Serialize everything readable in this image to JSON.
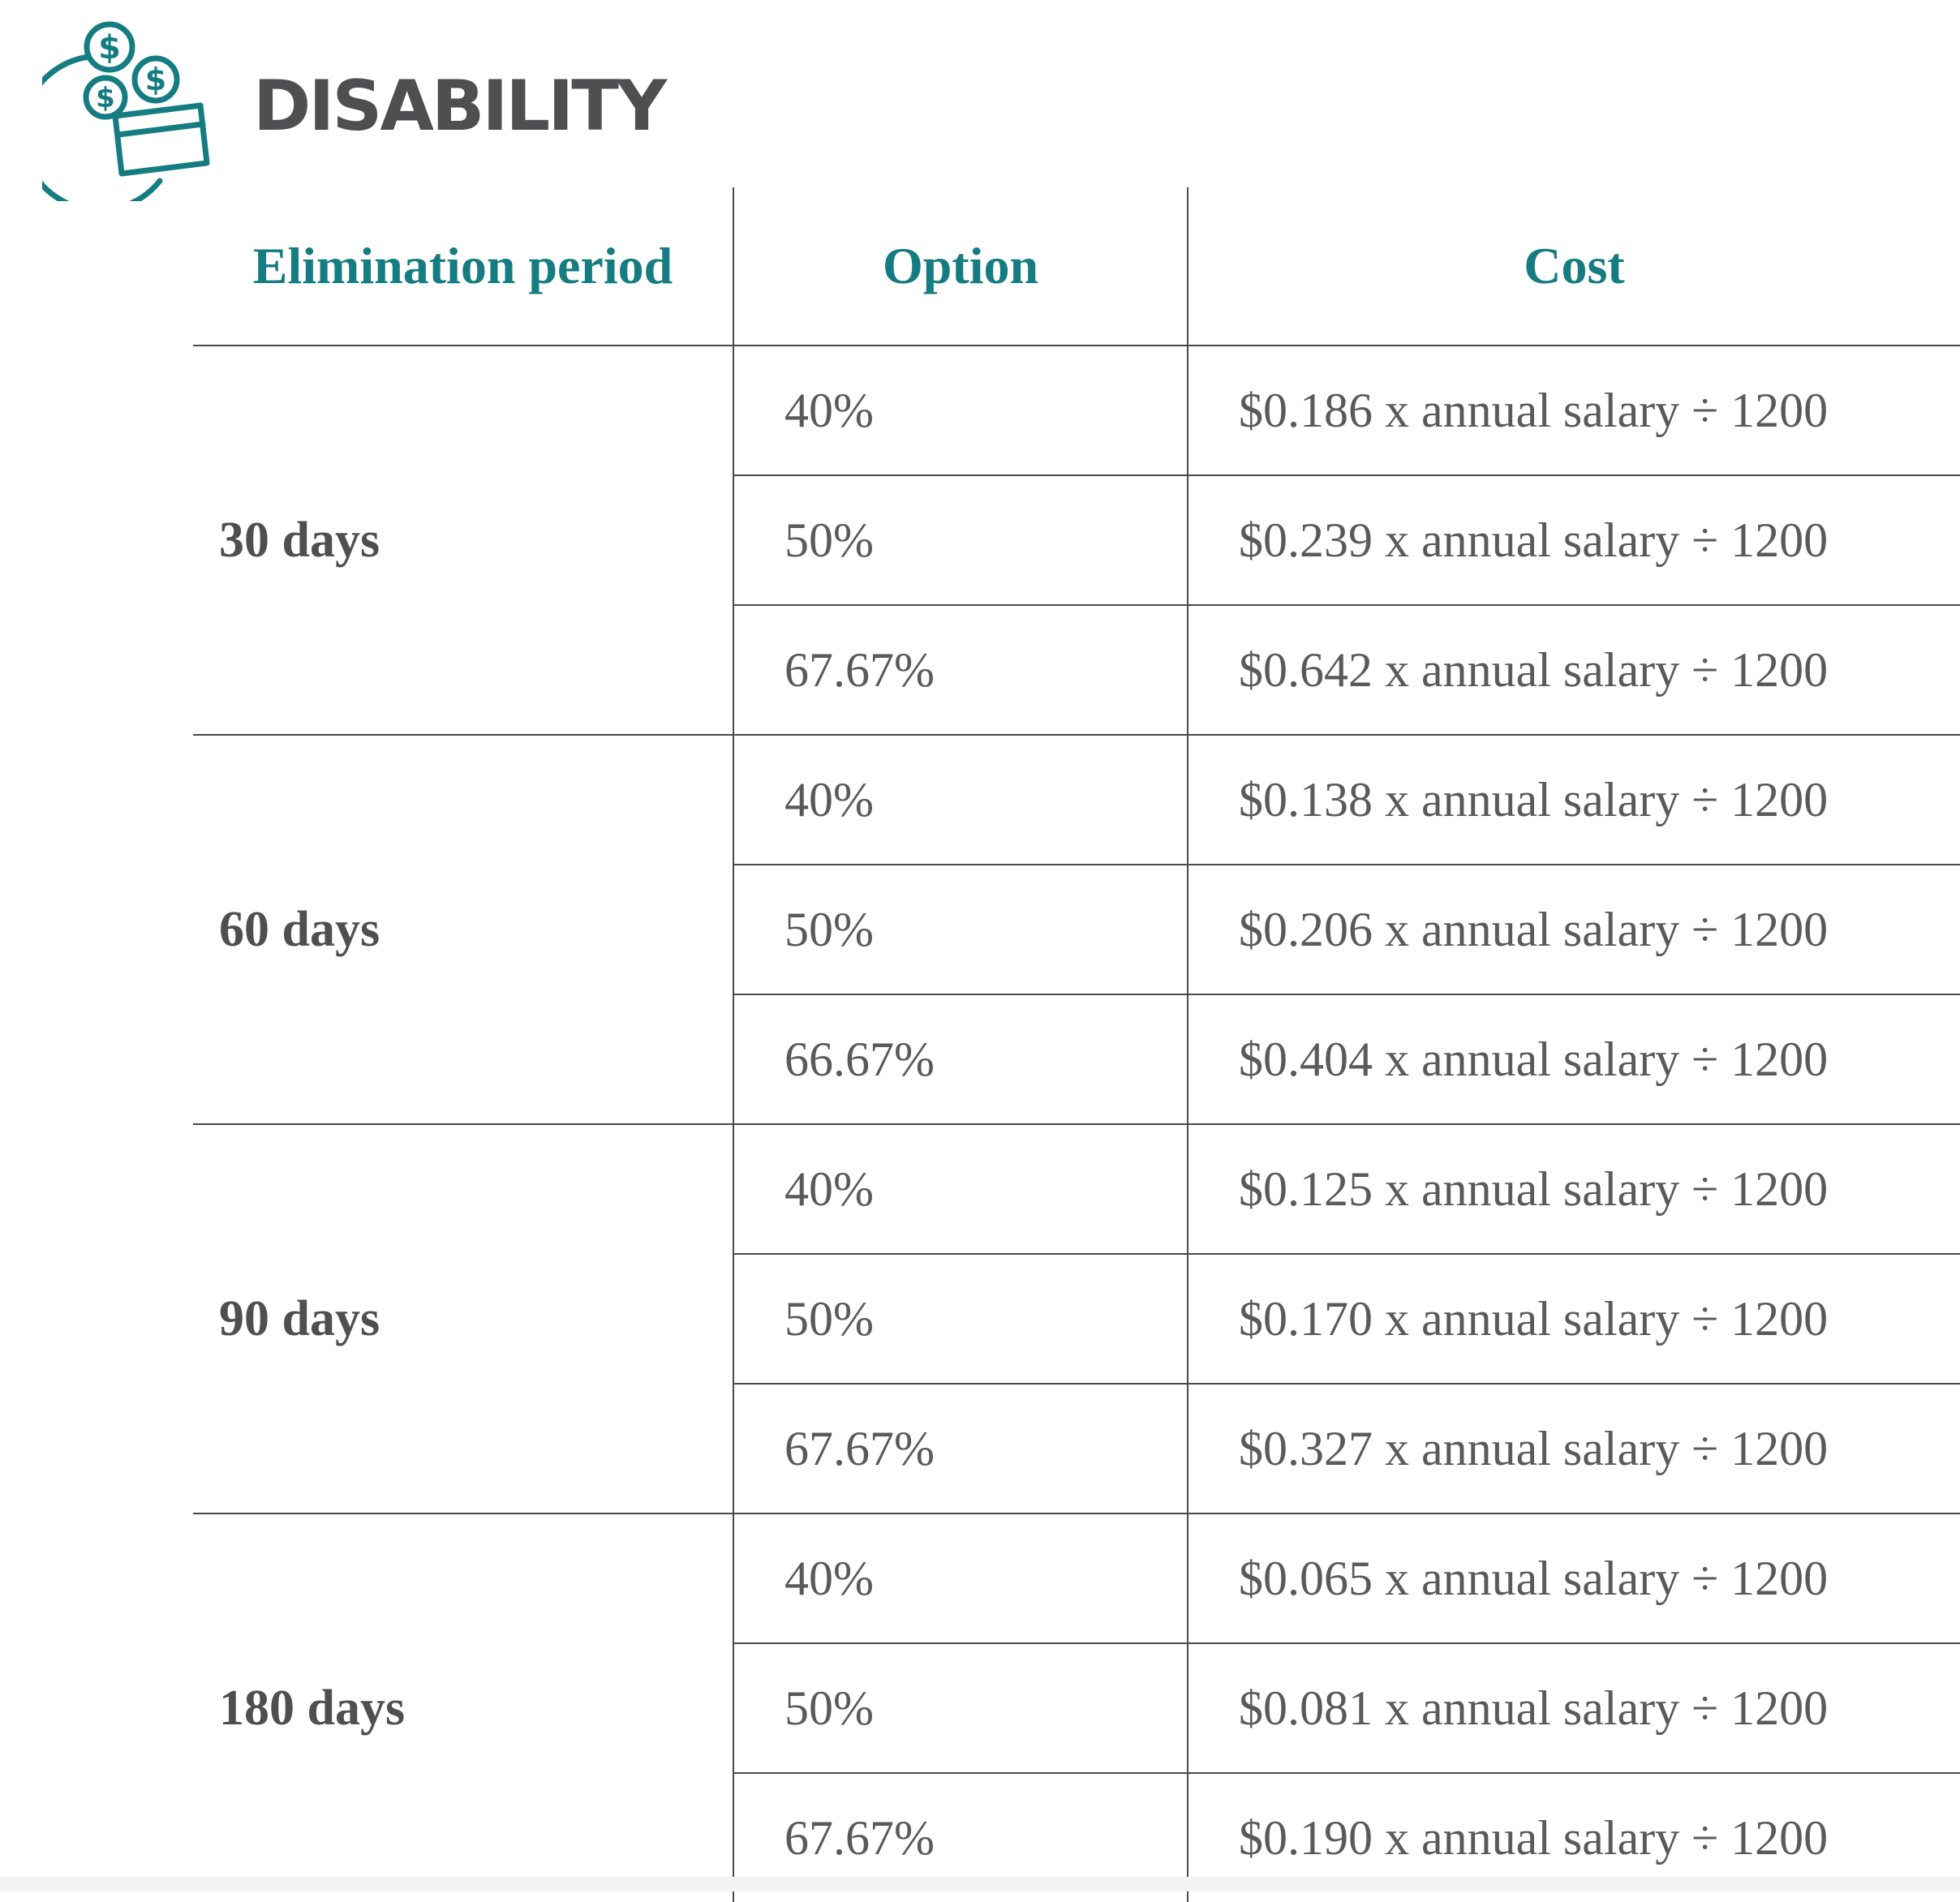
{
  "header": {
    "title": "DISABILITY",
    "icon": "money-card-coins-icon",
    "accent_color": "#157c82",
    "title_color": "#4f4f51"
  },
  "table": {
    "columns": [
      "Elimination period",
      "Option",
      "Cost"
    ],
    "groups": [
      {
        "period": "30 days",
        "rows": [
          {
            "option": "40%",
            "cost": "$0.186 x annual salary ÷ 1200"
          },
          {
            "option": "50%",
            "cost": "$0.239 x annual salary ÷ 1200"
          },
          {
            "option": "67.67%",
            "cost": "$0.642 x annual salary ÷ 1200"
          }
        ]
      },
      {
        "period": "60 days",
        "rows": [
          {
            "option": "40%",
            "cost": "$0.138 x annual salary ÷ 1200"
          },
          {
            "option": "50%",
            "cost": "$0.206 x annual salary ÷ 1200"
          },
          {
            "option": "66.67%",
            "cost": "$0.404 x annual salary ÷ 1200"
          }
        ]
      },
      {
        "period": "90 days",
        "rows": [
          {
            "option": "40%",
            "cost": "$0.125 x annual salary ÷ 1200"
          },
          {
            "option": "50%",
            "cost": "$0.170 x annual salary ÷ 1200"
          },
          {
            "option": "67.67%",
            "cost": "$0.327 x annual salary ÷ 1200"
          }
        ]
      },
      {
        "period": "180 days",
        "rows": [
          {
            "option": "40%",
            "cost": "$0.065 x annual salary ÷ 1200"
          },
          {
            "option": "50%",
            "cost": "$0.081 x annual salary ÷ 1200"
          },
          {
            "option": "67.67%",
            "cost": "$0.190 x annual salary ÷ 1200"
          }
        ]
      }
    ]
  }
}
